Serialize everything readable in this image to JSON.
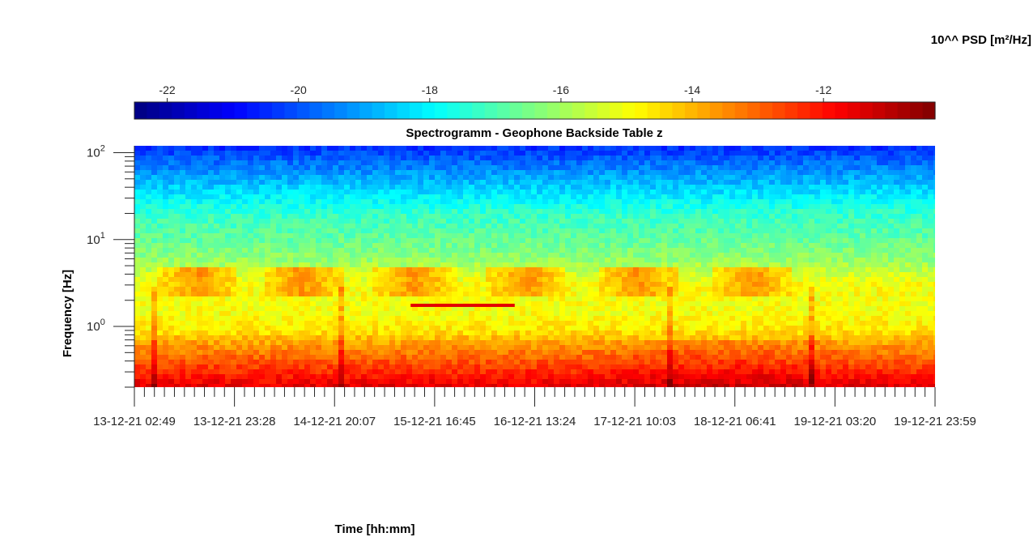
{
  "chart_data": {
    "type": "heatmap",
    "title": "Spectrogramm - Geophone Backside Table z",
    "xlabel": "Time [hh:mm]",
    "ylabel": "Frequency [Hz]",
    "y_scale": "log",
    "ylim": [
      0.2,
      120
    ],
    "y_ticks": [
      {
        "value": 1,
        "label_base": "10",
        "label_exp": "0"
      },
      {
        "value": 10,
        "label_base": "10",
        "label_exp": "1"
      },
      {
        "value": 100,
        "label_base": "10",
        "label_exp": "2"
      }
    ],
    "x_tick_labels": [
      "13-12-21 02:49",
      "13-12-21 23:28",
      "14-12-21 20:07",
      "15-12-21 16:45",
      "16-12-21 13:24",
      "17-12-21 10:03",
      "18-12-21 06:41",
      "19-12-21 03:20",
      "19-12-21 23:59"
    ],
    "colorbar": {
      "label": "10^^ PSD [m²/Hz]",
      "colormap": "jet",
      "range": [
        -22.5,
        -10.3
      ],
      "tick_values": [
        -22,
        -20,
        -18,
        -16,
        -14,
        -12
      ],
      "tick_labels": [
        "-22",
        "-20",
        "-18",
        "-16",
        "-14",
        "-12"
      ],
      "placement": "top"
    },
    "level_profile": [
      {
        "freq": 0.2,
        "log_psd": -11.5
      },
      {
        "freq": 0.35,
        "log_psd": -12.6
      },
      {
        "freq": 0.6,
        "log_psd": -13.6
      },
      {
        "freq": 0.9,
        "log_psd": -14.6
      },
      {
        "freq": 1.5,
        "log_psd": -15.0
      },
      {
        "freq": 3,
        "log_psd": -14.9
      },
      {
        "freq": 6,
        "log_psd": -16.2
      },
      {
        "freq": 12,
        "log_psd": -16.9
      },
      {
        "freq": 20,
        "log_psd": -17.3
      },
      {
        "freq": 30,
        "log_psd": -18.0
      },
      {
        "freq": 60,
        "log_psd": -19.2
      },
      {
        "freq": 120,
        "log_psd": -20.5
      }
    ],
    "features": [
      {
        "kind": "horizontal_line",
        "freq": 1.75,
        "time_start": 0.345,
        "time_end": 0.475,
        "log_psd": -11.5
      },
      {
        "kind": "daytime_band",
        "freq_low": 2.2,
        "freq_high": 4.5,
        "time_centers": [
          0.08,
          0.21,
          0.35,
          0.49,
          0.63,
          0.77
        ],
        "log_psd": -13.6
      }
    ]
  }
}
